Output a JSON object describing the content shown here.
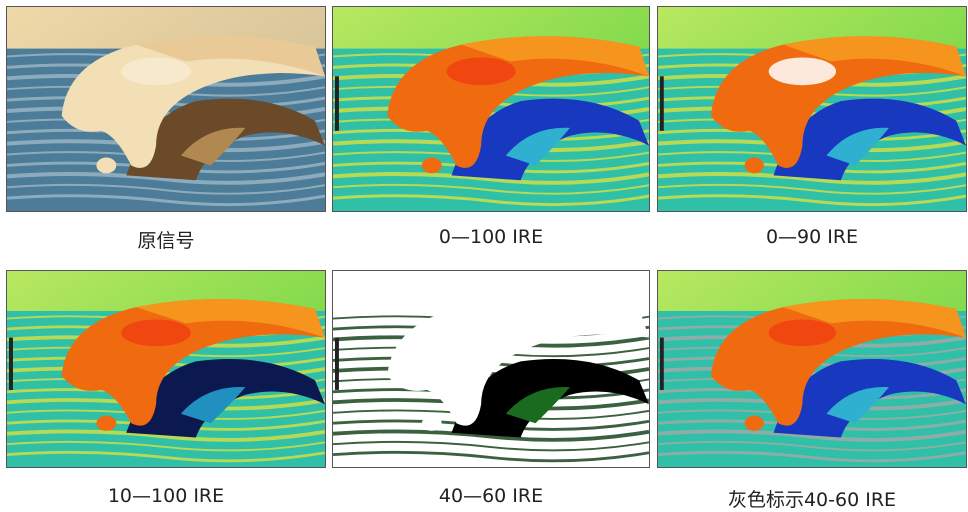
{
  "panels": [
    {
      "caption": "原信号"
    },
    {
      "caption": "0—100 IRE"
    },
    {
      "caption": "0—90 IRE"
    },
    {
      "caption": "10—100 IRE"
    },
    {
      "caption": "40—60 IRE"
    },
    {
      "caption": "灰色标示40-60 IRE"
    }
  ]
}
